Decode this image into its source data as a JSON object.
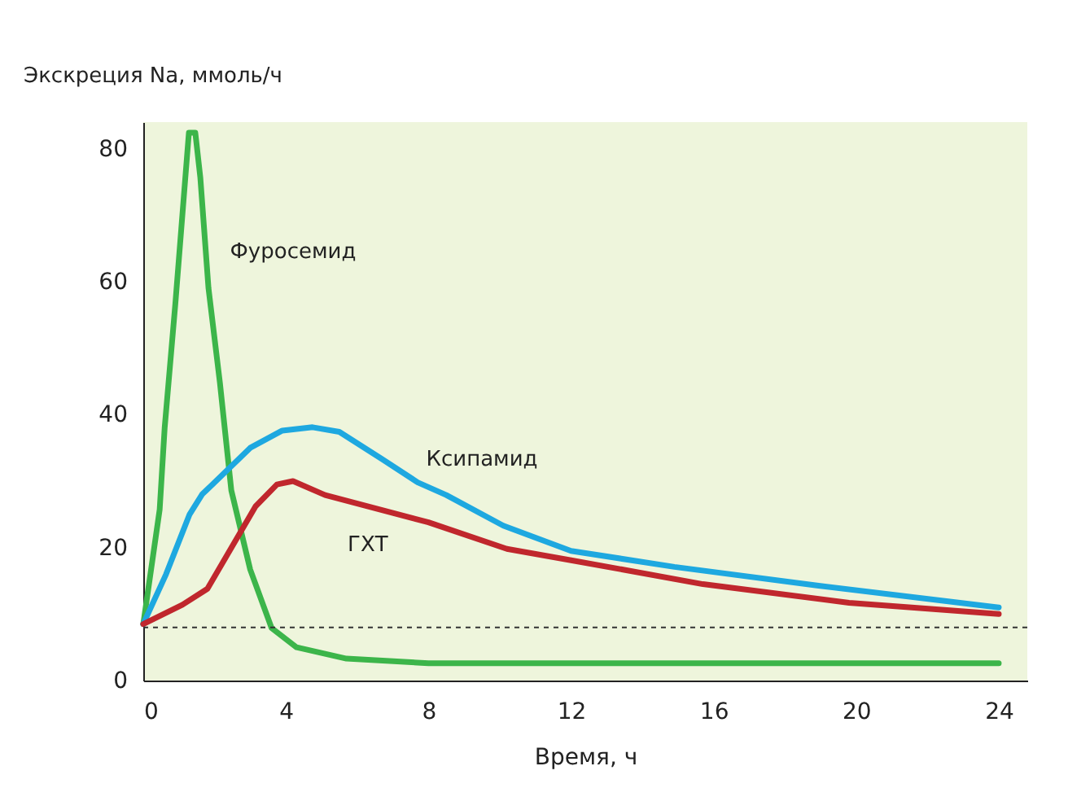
{
  "chart_data": {
    "type": "line",
    "ylabel": "Экскреция Na, ммоль/ч",
    "xlabel": "Время, ч",
    "xlim": [
      0,
      24.8
    ],
    "xticks": [
      0,
      4,
      8,
      12,
      16,
      20,
      24
    ],
    "ylim": [
      0,
      84
    ],
    "yticks": [
      0,
      20,
      40,
      60,
      80
    ],
    "grid": false,
    "legend": false,
    "marker": "none",
    "series": [
      {
        "name": "Фуросемид",
        "color": "#3cb54a",
        "x": [
          0,
          0.46,
          0.6,
          0.9,
          1.28,
          1.46,
          1.6,
          1.83,
          2.15,
          2.47,
          3.0,
          3.6,
          4.3,
          5.7,
          8,
          24
        ],
        "values": [
          8.5,
          25.7,
          38,
          56.7,
          82.4,
          82.4,
          75.7,
          59,
          44.8,
          28.6,
          16.7,
          7.9,
          5,
          3.3,
          2.6,
          2.6
        ]
      },
      {
        "name": "Ксипамид",
        "color": "#1ea8e0",
        "x": [
          0,
          0.64,
          1.3,
          1.65,
          3,
          3.9,
          4.75,
          5.5,
          6.7,
          7.7,
          8.5,
          10.1,
          12,
          14.9,
          18.9,
          24
        ],
        "values": [
          8.5,
          16,
          25,
          28,
          35,
          37.6,
          38.1,
          37.4,
          33.3,
          29.8,
          27.9,
          23.3,
          19.5,
          17.1,
          14.3,
          11
        ]
      },
      {
        "name": "ГХТ",
        "color": "#c0272d",
        "x": [
          0,
          1.1,
          1.8,
          3.15,
          3.75,
          4.2,
          5.1,
          8,
          10.2,
          12,
          15.7,
          19.8,
          24
        ],
        "values": [
          8.5,
          11.4,
          13.8,
          26.2,
          29.5,
          30,
          27.9,
          23.8,
          19.8,
          18.1,
          14.5,
          11.7,
          10
        ]
      }
    ],
    "ref_lines": [
      {
        "axis": "y",
        "value": 8,
        "color": "#333333",
        "line_style": "dashed"
      }
    ]
  }
}
